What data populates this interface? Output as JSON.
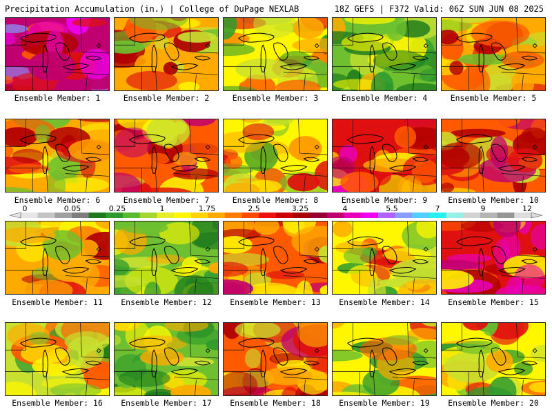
{
  "header": {
    "left": "Precipitation Accumulation (in.) | College of DuPage NEXLAB",
    "right": "18Z GEFS | F372 Valid: 06Z SUN JUN 08 2025"
  },
  "label_prefix": "Ensemble Member: ",
  "members": [
    {
      "label": "Ensemble Member: 1",
      "tone": 4.5
    },
    {
      "label": "Ensemble Member: 2",
      "tone": 2.5
    },
    {
      "label": "Ensemble Member: 3",
      "tone": 2.0
    },
    {
      "label": "Ensemble Member: 4",
      "tone": 1.0
    },
    {
      "label": "Ensemble Member: 5",
      "tone": 2.5
    },
    {
      "label": "Ensemble Member: 6",
      "tone": 2.5
    },
    {
      "label": "Ensemble Member: 7",
      "tone": 3.0
    },
    {
      "label": "Ensemble Member: 8",
      "tone": 2.0
    },
    {
      "label": "Ensemble Member: 9",
      "tone": 3.5
    },
    {
      "label": "Ensemble Member: 10",
      "tone": 3.0
    },
    {
      "label": "Ensemble Member: 11",
      "tone": 2.5
    },
    {
      "label": "Ensemble Member: 12",
      "tone": 1.0
    },
    {
      "label": "Ensemble Member: 13",
      "tone": 3.0
    },
    {
      "label": "Ensemble Member: 14",
      "tone": 2.0
    },
    {
      "label": "Ensemble Member: 15",
      "tone": 3.5
    },
    {
      "label": "Ensemble Member: 16",
      "tone": 1.5
    },
    {
      "label": "Ensemble Member: 17",
      "tone": 1.0
    },
    {
      "label": "Ensemble Member: 18",
      "tone": 3.0
    },
    {
      "label": "Ensemble Member: 19",
      "tone": 2.0
    },
    {
      "label": "Ensemble Member: 20",
      "tone": 2.0
    }
  ],
  "colorbar": {
    "tick_labels": [
      "0",
      "0.05",
      "0.25",
      "1",
      "1.75",
      "2.5",
      "3.25",
      "4",
      "5.5",
      "7",
      "9",
      "12"
    ],
    "colors": [
      "#e6e6e6",
      "#c4c4c4",
      "#a0a0a0",
      "#7e7e7e",
      "#1c7a1c",
      "#2e9a2e",
      "#5aba2e",
      "#a4d630",
      "#e6ee28",
      "#fff700",
      "#ffd400",
      "#ffaa00",
      "#ff7c00",
      "#ff4a00",
      "#f01010",
      "#cc0000",
      "#a80000",
      "#960032",
      "#c00070",
      "#e800b8",
      "#f000f0",
      "#b260ff",
      "#8a9cff",
      "#50d0ff",
      "#28f0f0",
      "#96f0e6",
      "#d2d2d2",
      "#b4b4b4",
      "#969696",
      "#dcdcdc"
    ]
  }
}
